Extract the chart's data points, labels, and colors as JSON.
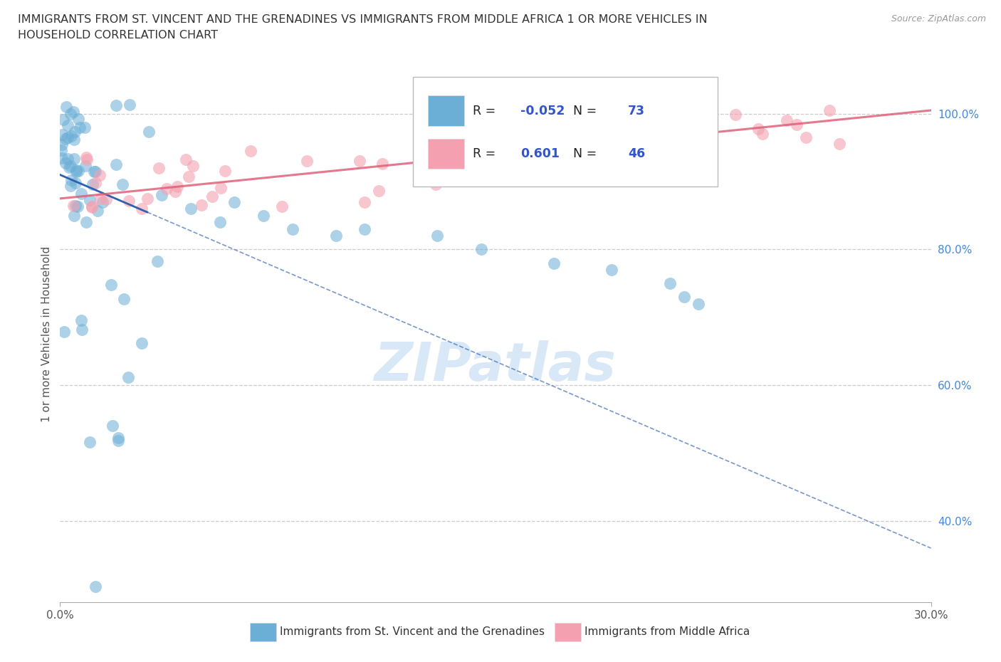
{
  "title_line1": "IMMIGRANTS FROM ST. VINCENT AND THE GRENADINES VS IMMIGRANTS FROM MIDDLE AFRICA 1 OR MORE VEHICLES IN",
  "title_line2": "HOUSEHOLD CORRELATION CHART",
  "source_text": "Source: ZipAtlas.com",
  "ylabel": "1 or more Vehicles in Household",
  "xlim": [
    0.0,
    30.0
  ],
  "ylim": [
    28.0,
    107.0
  ],
  "blue_color": "#6baed6",
  "pink_color": "#f4a0b0",
  "trend_blue_color": "#3060b0",
  "trend_pink_color": "#e0607a",
  "grid_color": "#cccccc",
  "watermark_color": "#c8dff5",
  "blue_R": -0.052,
  "blue_N": 73,
  "pink_R": 0.601,
  "pink_N": 46,
  "blue_label": "Immigrants from St. Vincent and the Grenadines",
  "pink_label": "Immigrants from Middle Africa",
  "right_yticks": [
    40.0,
    60.0,
    80.0,
    100.0
  ],
  "right_yticklabels": [
    "40.0%",
    "60.0%",
    "80.0%",
    "100.0%"
  ],
  "blue_trend_x0": 0.0,
  "blue_trend_y0": 91.0,
  "blue_trend_x1": 30.0,
  "blue_trend_y1": 36.0,
  "pink_trend_x0": 0.0,
  "pink_trend_y0": 87.5,
  "pink_trend_x1": 30.0,
  "pink_trend_y1": 100.5
}
